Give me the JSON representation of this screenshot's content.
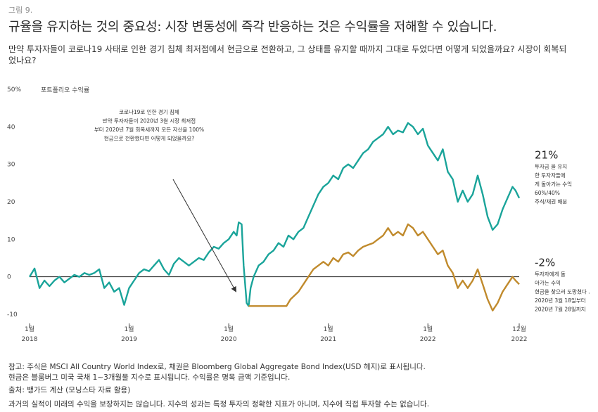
{
  "figure_label": "그림 9.",
  "title": "규율을 유지하는 것의 중요성: 시장 변동성에 즉각 반응하는 것은 수익률을 저해할 수 있습니다.",
  "subtitle": "만약 투자자들이 코로나19 사태로 인한 경기 침체 최저점에서 현금으로 전환하고, 그 상태를 유지할 때까지 그대로 두었다면 어떻게 되었을까요? 시장이 회복되었나요?",
  "colors": {
    "teal": "#1aa49a",
    "gold": "#c08a2c",
    "zero_line": "#222222",
    "arrow": "#333333"
  },
  "chart_data": {
    "type": "line",
    "ylabel": "포트폴리오 수익률",
    "ylim": [
      -10,
      50
    ],
    "y_ticks": [
      {
        "value": 50,
        "label": "50%"
      },
      {
        "value": 40,
        "label": "40"
      },
      {
        "value": 30,
        "label": "30"
      },
      {
        "value": 20,
        "label": "20"
      },
      {
        "value": 10,
        "label": "10"
      },
      {
        "value": 0,
        "label": "0"
      },
      {
        "value": -10,
        "label": "-10"
      }
    ],
    "xlim": [
      2018.0,
      2022.917
    ],
    "x_ticks": [
      {
        "value": 2018.0,
        "month": "1월",
        "year": "2018"
      },
      {
        "value": 2019.0,
        "month": "1월",
        "year": "2019"
      },
      {
        "value": 2020.0,
        "month": "1월",
        "year": "2020"
      },
      {
        "value": 2021.0,
        "month": "1월",
        "year": "2021"
      },
      {
        "value": 2022.0,
        "month": "1월",
        "year": "2022"
      },
      {
        "value": 2022.917,
        "month": "12월",
        "year": "2022"
      }
    ],
    "series": [
      {
        "color": "#1aa49a",
        "points": [
          [
            2018.0,
            0
          ],
          [
            2018.05,
            2.2
          ],
          [
            2018.1,
            -3
          ],
          [
            2018.15,
            -1
          ],
          [
            2018.2,
            -2.5
          ],
          [
            2018.25,
            -1
          ],
          [
            2018.3,
            0
          ],
          [
            2018.35,
            -1.5
          ],
          [
            2018.4,
            -0.5
          ],
          [
            2018.45,
            0.5
          ],
          [
            2018.5,
            0
          ],
          [
            2018.55,
            1
          ],
          [
            2018.6,
            0.5
          ],
          [
            2018.65,
            1
          ],
          [
            2018.7,
            2
          ],
          [
            2018.75,
            -3
          ],
          [
            2018.8,
            -1.5
          ],
          [
            2018.85,
            -4
          ],
          [
            2018.9,
            -3
          ],
          [
            2018.95,
            -7.5
          ],
          [
            2019.0,
            -3
          ],
          [
            2019.05,
            -1
          ],
          [
            2019.1,
            1
          ],
          [
            2019.15,
            2
          ],
          [
            2019.2,
            1.5
          ],
          [
            2019.25,
            3
          ],
          [
            2019.3,
            4.5
          ],
          [
            2019.35,
            2
          ],
          [
            2019.4,
            0.5
          ],
          [
            2019.45,
            3.5
          ],
          [
            2019.5,
            5
          ],
          [
            2019.55,
            4
          ],
          [
            2019.6,
            3
          ],
          [
            2019.65,
            4
          ],
          [
            2019.7,
            5
          ],
          [
            2019.75,
            4.5
          ],
          [
            2019.8,
            6.5
          ],
          [
            2019.85,
            8
          ],
          [
            2019.9,
            7.5
          ],
          [
            2019.95,
            9
          ],
          [
            2020.0,
            10
          ],
          [
            2020.05,
            12
          ],
          [
            2020.08,
            11
          ],
          [
            2020.1,
            14.5
          ],
          [
            2020.13,
            14
          ],
          [
            2020.15,
            3
          ],
          [
            2020.18,
            -7
          ],
          [
            2020.2,
            -7.8
          ],
          [
            2020.22,
            -3
          ],
          [
            2020.25,
            0
          ],
          [
            2020.3,
            3
          ],
          [
            2020.35,
            4
          ],
          [
            2020.4,
            6
          ],
          [
            2020.45,
            7
          ],
          [
            2020.5,
            9
          ],
          [
            2020.55,
            8
          ],
          [
            2020.6,
            11
          ],
          [
            2020.65,
            10
          ],
          [
            2020.7,
            12
          ],
          [
            2020.75,
            13
          ],
          [
            2020.8,
            16
          ],
          [
            2020.85,
            19
          ],
          [
            2020.9,
            22
          ],
          [
            2020.95,
            24
          ],
          [
            2021.0,
            25
          ],
          [
            2021.05,
            27
          ],
          [
            2021.1,
            26
          ],
          [
            2021.15,
            29
          ],
          [
            2021.2,
            30
          ],
          [
            2021.25,
            29
          ],
          [
            2021.3,
            31
          ],
          [
            2021.35,
            33
          ],
          [
            2021.4,
            34
          ],
          [
            2021.45,
            36
          ],
          [
            2021.5,
            37
          ],
          [
            2021.55,
            38
          ],
          [
            2021.6,
            40
          ],
          [
            2021.65,
            38
          ],
          [
            2021.7,
            39
          ],
          [
            2021.75,
            38.5
          ],
          [
            2021.8,
            41
          ],
          [
            2021.85,
            40
          ],
          [
            2021.9,
            38
          ],
          [
            2021.95,
            39.5
          ],
          [
            2022.0,
            35
          ],
          [
            2022.05,
            33
          ],
          [
            2022.1,
            31
          ],
          [
            2022.15,
            34
          ],
          [
            2022.2,
            28
          ],
          [
            2022.25,
            26
          ],
          [
            2022.3,
            20
          ],
          [
            2022.35,
            23
          ],
          [
            2022.4,
            20
          ],
          [
            2022.45,
            22
          ],
          [
            2022.5,
            27
          ],
          [
            2022.55,
            22
          ],
          [
            2022.6,
            16
          ],
          [
            2022.65,
            12.5
          ],
          [
            2022.7,
            14
          ],
          [
            2022.75,
            18
          ],
          [
            2022.8,
            21
          ],
          [
            2022.85,
            24
          ],
          [
            2022.88,
            23
          ],
          [
            2022.917,
            21
          ]
        ]
      },
      {
        "color": "#c08a2c",
        "points": [
          [
            2020.2,
            -7.8
          ],
          [
            2020.3,
            -7.8
          ],
          [
            2020.4,
            -7.8
          ],
          [
            2020.5,
            -7.8
          ],
          [
            2020.58,
            -7.8
          ],
          [
            2020.62,
            -6
          ],
          [
            2020.7,
            -4
          ],
          [
            2020.75,
            -2
          ],
          [
            2020.8,
            0
          ],
          [
            2020.85,
            2
          ],
          [
            2020.9,
            3
          ],
          [
            2020.95,
            4
          ],
          [
            2021.0,
            3
          ],
          [
            2021.05,
            5
          ],
          [
            2021.1,
            4
          ],
          [
            2021.15,
            6
          ],
          [
            2021.2,
            6.5
          ],
          [
            2021.25,
            5.5
          ],
          [
            2021.3,
            7
          ],
          [
            2021.35,
            8
          ],
          [
            2021.4,
            8.5
          ],
          [
            2021.45,
            9
          ],
          [
            2021.5,
            10
          ],
          [
            2021.55,
            11
          ],
          [
            2021.6,
            13
          ],
          [
            2021.65,
            11
          ],
          [
            2021.7,
            12
          ],
          [
            2021.75,
            11
          ],
          [
            2021.8,
            14
          ],
          [
            2021.85,
            13
          ],
          [
            2021.9,
            11
          ],
          [
            2021.95,
            12
          ],
          [
            2022.0,
            10
          ],
          [
            2022.05,
            8
          ],
          [
            2022.1,
            6
          ],
          [
            2022.15,
            7
          ],
          [
            2022.2,
            3
          ],
          [
            2022.25,
            1
          ],
          [
            2022.3,
            -3
          ],
          [
            2022.35,
            -1
          ],
          [
            2022.4,
            -3
          ],
          [
            2022.45,
            -1
          ],
          [
            2022.5,
            2
          ],
          [
            2022.55,
            -2
          ],
          [
            2022.6,
            -6
          ],
          [
            2022.65,
            -9
          ],
          [
            2022.7,
            -7
          ],
          [
            2022.75,
            -4
          ],
          [
            2022.8,
            -2
          ],
          [
            2022.85,
            0
          ],
          [
            2022.88,
            -1
          ],
          [
            2022.917,
            -2
          ]
        ]
      }
    ],
    "annotation": {
      "lines": [
        "코로나19로 인한 경기 침체",
        "만약 투자자들이 2020년 3월 시장 최저점",
        "부터 2020년 7월 회복세까지 모든 자산을 100%",
        "현금으로 전환했다면 어떻게 되었을까요?"
      ]
    },
    "callouts": [
      {
        "value": "21%",
        "color": "#1aa49a",
        "lines": [
          "투자금 을 유지",
          "한 투자자들에",
          "게 돌아가는 수익",
          "60%/40%",
          "주식/채권 배분"
        ]
      },
      {
        "value": "-2%",
        "color": "#c08a2c",
        "lines": [
          "투자자에게 돌",
          "아가는 수익",
          "현금을 찾으러 도망쳤다 .",
          "2020년 3월 18일부터",
          "2020년 7월 28일까지"
        ]
      }
    ]
  },
  "notes": [
    "참고: 주식은 MSCI All Country World Index로, 채권은 Bloomberg Global Aggregate Bond Index(USD 헤지)로 표시됩니다.",
    "현금은 블룸버그 미국 국채 1~3개월물 지수로 표시됩니다. 수익률은 명목 금액 기준입니다.",
    "출처: 뱅가드 계산 (모닝스타 자료 활용)",
    "과거의 실적이 미래의 수익을 보장하지는 않습니다. 지수의 성과는 특정 투자의 정확한 지표가 아니며, 지수에 직접 투자할 수는 없습니다."
  ]
}
